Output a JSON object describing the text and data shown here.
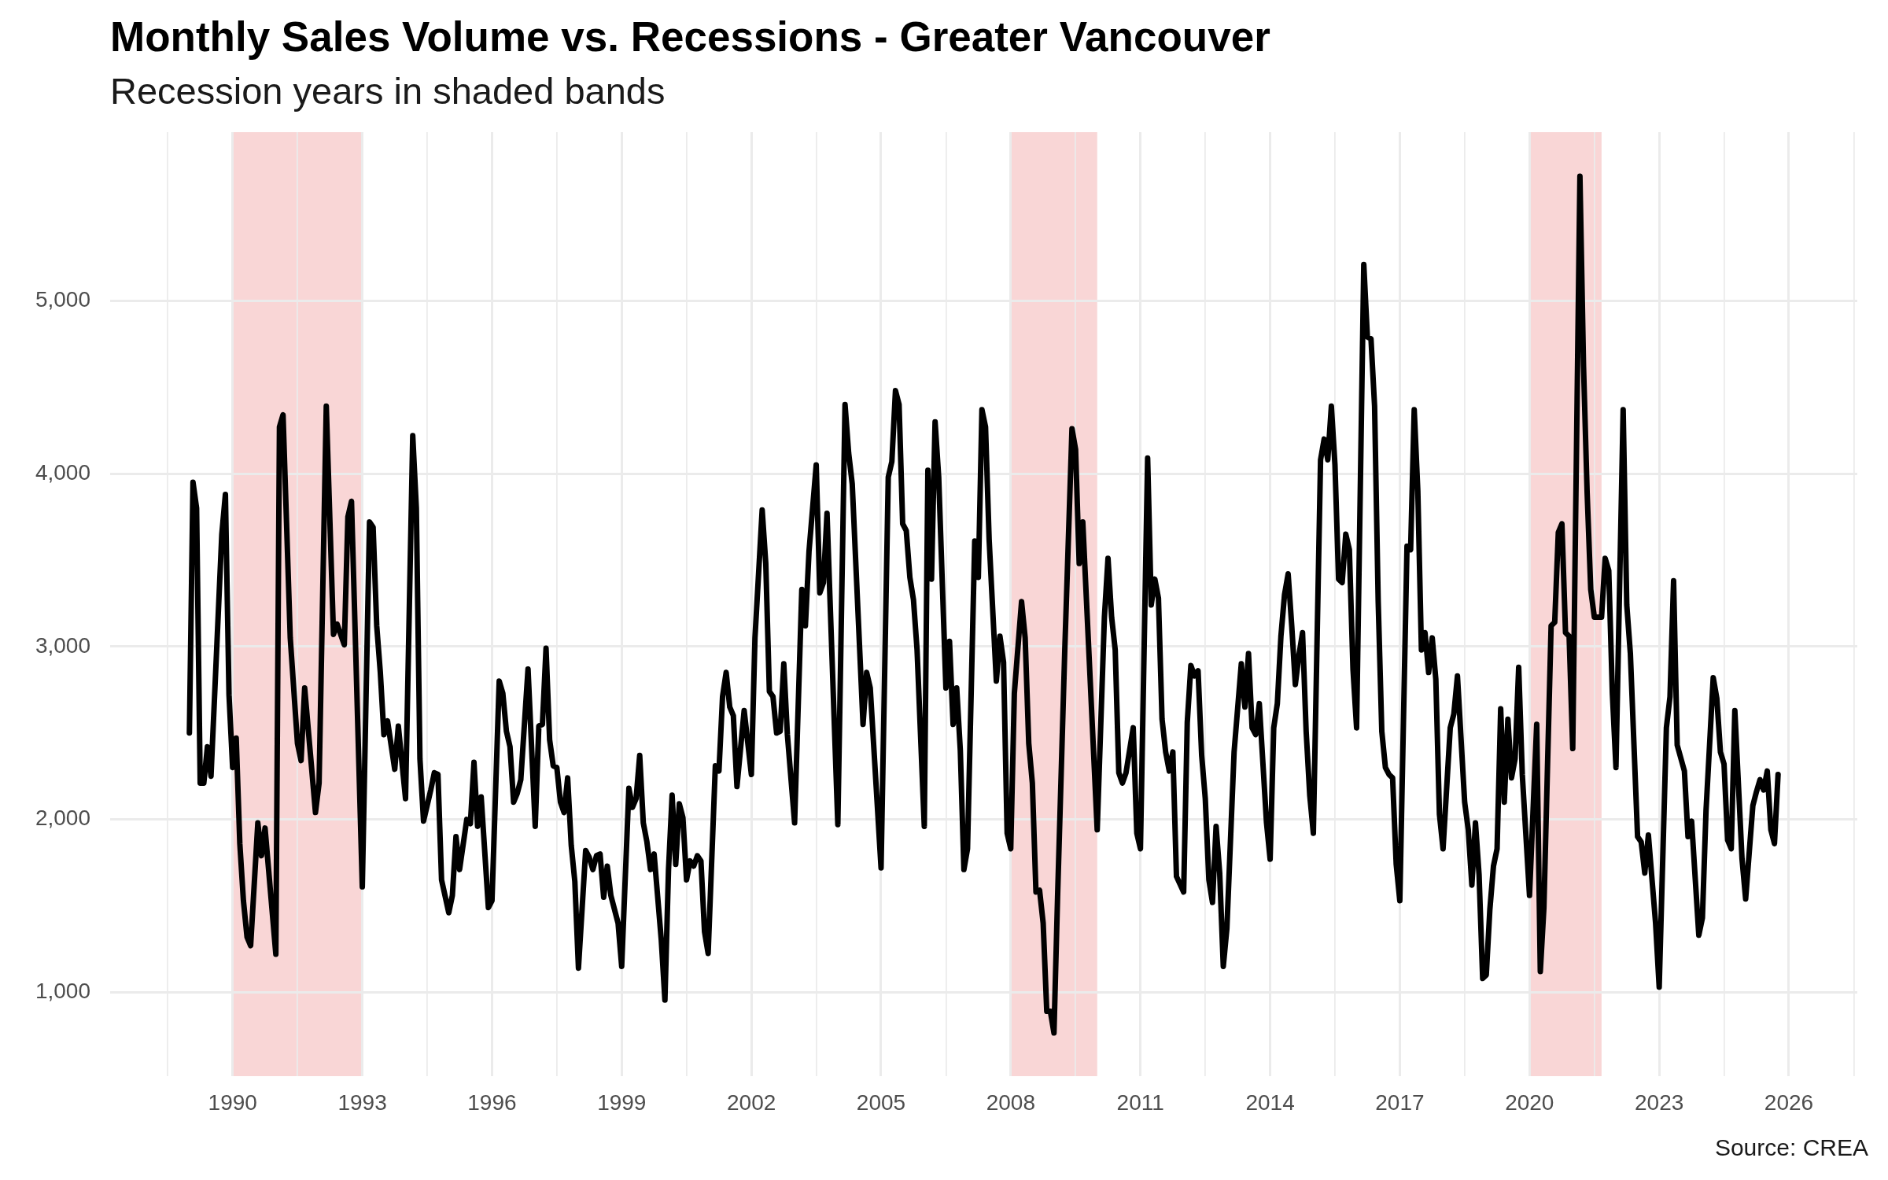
{
  "chart_data": {
    "type": "line",
    "title": "Monthly Sales Volume vs. Recessions - Greater Vancouver",
    "subtitle": "Recession years in shaded bands",
    "annotations": [
      "Source: CREA"
    ],
    "x": [
      "1989-01",
      "1989-02",
      "1989-03",
      "1989-04",
      "1989-05",
      "1989-06",
      "1989-07",
      "1989-10",
      "1989-11",
      "1989-12",
      "1990-01",
      "1990-02",
      "1990-03",
      "1990-04",
      "1990-05",
      "1990-06",
      "1990-08",
      "1990-09",
      "1990-10",
      "1991-01",
      "1991-02",
      "1991-03",
      "1991-05",
      "1991-07",
      "1991-08",
      "1991-09",
      "1991-12",
      "1992-01",
      "1992-03",
      "1992-05",
      "1992-06",
      "1992-08",
      "1992-09",
      "1992-10",
      "1993-01",
      "1993-03",
      "1993-04",
      "1993-05",
      "1993-06",
      "1993-07",
      "1993-08",
      "1993-10",
      "1993-11",
      "1994-01",
      "1994-03",
      "1994-04",
      "1994-05",
      "1994-06",
      "1994-08",
      "1994-09",
      "1994-10",
      "1994-11",
      "1995-01",
      "1995-02",
      "1995-03",
      "1995-04",
      "1995-06",
      "1995-07",
      "1995-08",
      "1995-09",
      "1995-10",
      "1995-12",
      "1996-01",
      "1996-03",
      "1996-04",
      "1996-05",
      "1996-06",
      "1996-07",
      "1996-08",
      "1996-09",
      "1996-11",
      "1997-01",
      "1997-02",
      "1997-03",
      "1997-04",
      "1997-05",
      "1997-06",
      "1997-07",
      "1997-08",
      "1997-09",
      "1997-10",
      "1997-11",
      "1997-12",
      "1998-01",
      "1998-03",
      "1998-04",
      "1998-05",
      "1998-06",
      "1998-07",
      "1998-08",
      "1998-09",
      "1998-10",
      "1998-12",
      "1999-01",
      "1999-03",
      "1999-04",
      "1999-05",
      "1999-06",
      "1999-07",
      "1999-08",
      "1999-09",
      "1999-10",
      "1999-12",
      "2000-01",
      "2000-02",
      "2000-03",
      "2000-04",
      "2000-05",
      "2000-06",
      "2000-07",
      "2000-08",
      "2000-09",
      "2000-10",
      "2000-11",
      "2000-12",
      "2001-01",
      "2001-03",
      "2001-04",
      "2001-05",
      "2001-06",
      "2001-07",
      "2001-08",
      "2001-09",
      "2001-11",
      "2002-01",
      "2002-02",
      "2002-04",
      "2002-05",
      "2002-06",
      "2002-07",
      "2002-08",
      "2002-09",
      "2002-10",
      "2002-11",
      "2003-01",
      "2003-03",
      "2003-04",
      "2003-05",
      "2003-07",
      "2003-08",
      "2003-09",
      "2003-10",
      "2004-01",
      "2004-03",
      "2004-04",
      "2004-05",
      "2004-08",
      "2004-09",
      "2004-10",
      "2005-01",
      "2005-03",
      "2005-04",
      "2005-05",
      "2005-06",
      "2005-07",
      "2005-08",
      "2005-09",
      "2005-10",
      "2005-11",
      "2006-01",
      "2006-02",
      "2006-03",
      "2006-04",
      "2006-05",
      "2006-07",
      "2006-08",
      "2006-09",
      "2006-10",
      "2006-11",
      "2006-12",
      "2007-01",
      "2007-03",
      "2007-04",
      "2007-05",
      "2007-06",
      "2007-07",
      "2007-09",
      "2007-10",
      "2007-11",
      "2007-12",
      "2008-01",
      "2008-02",
      "2008-04",
      "2008-05",
      "2008-06",
      "2008-07",
      "2008-08",
      "2008-09",
      "2008-10",
      "2008-11",
      "2008-12",
      "2009-01",
      "2009-02",
      "2009-04",
      "2009-06",
      "2009-07",
      "2009-08",
      "2009-09",
      "2010-01",
      "2010-03",
      "2010-04",
      "2010-05",
      "2010-06",
      "2010-07",
      "2010-08",
      "2010-09",
      "2010-11",
      "2010-12",
      "2011-01",
      "2011-03",
      "2011-04",
      "2011-05",
      "2011-06",
      "2011-07",
      "2011-08",
      "2011-09",
      "2011-10",
      "2011-11",
      "2012-01",
      "2012-02",
      "2012-03",
      "2012-04",
      "2012-05",
      "2012-06",
      "2012-07",
      "2012-08",
      "2012-09",
      "2012-10",
      "2012-11",
      "2012-12",
      "2013-01",
      "2013-03",
      "2013-05",
      "2013-06",
      "2013-07",
      "2013-08",
      "2013-09",
      "2013-10",
      "2013-12",
      "2014-01",
      "2014-02",
      "2014-03",
      "2014-04",
      "2014-05",
      "2014-06",
      "2014-07",
      "2014-08",
      "2014-09",
      "2014-10",
      "2014-11",
      "2014-12",
      "2015-01",
      "2015-03",
      "2015-04",
      "2015-05",
      "2015-06",
      "2015-07",
      "2015-08",
      "2015-09",
      "2015-10",
      "2015-11",
      "2015-12",
      "2016-01",
      "2016-03",
      "2016-04",
      "2016-05",
      "2016-06",
      "2016-07",
      "2016-08",
      "2016-09",
      "2016-10",
      "2016-11",
      "2016-12",
      "2017-01",
      "2017-03",
      "2017-04",
      "2017-05",
      "2017-06",
      "2017-07",
      "2017-08",
      "2017-09",
      "2017-10",
      "2017-11",
      "2017-12",
      "2018-01",
      "2018-03",
      "2018-04",
      "2018-05",
      "2018-07",
      "2018-08",
      "2018-09",
      "2018-10",
      "2018-11",
      "2018-12",
      "2019-01",
      "2019-02",
      "2019-03",
      "2019-04",
      "2019-05",
      "2019-06",
      "2019-07",
      "2019-08",
      "2019-09",
      "2019-10",
      "2019-11",
      "2020-01",
      "2020-03",
      "2020-04",
      "2020-05",
      "2020-07",
      "2020-08",
      "2020-09",
      "2020-10",
      "2020-11",
      "2020-12",
      "2021-01",
      "2021-03",
      "2021-04",
      "2021-05",
      "2021-06",
      "2021-07",
      "2021-09",
      "2021-10",
      "2021-11",
      "2021-12",
      "2022-01",
      "2022-03",
      "2022-04",
      "2022-05",
      "2022-07",
      "2022-08",
      "2022-09",
      "2022-10",
      "2022-12",
      "2023-01",
      "2023-03",
      "2023-04",
      "2023-05",
      "2023-06",
      "2023-08",
      "2023-09",
      "2023-10",
      "2023-12",
      "2024-01",
      "2024-02",
      "2024-04",
      "2024-05",
      "2024-06",
      "2024-07",
      "2024-08",
      "2024-09",
      "2024-10",
      "2024-12",
      "2025-01",
      "2025-03",
      "2025-04",
      "2025-05",
      "2025-06",
      "2025-07",
      "2025-08",
      "2025-09",
      "2025-10"
    ],
    "values": [
      2500,
      3950,
      3800,
      2210,
      2210,
      2420,
      2250,
      3650,
      3880,
      2720,
      2300,
      2470,
      1860,
      1530,
      1320,
      1270,
      1980,
      1790,
      1950,
      1220,
      4270,
      4340,
      3050,
      2440,
      2340,
      2760,
      2040,
      2210,
      4390,
      3070,
      3130,
      3010,
      3750,
      3840,
      1610,
      3720,
      3690,
      3120,
      2850,
      2490,
      2570,
      2290,
      2540,
      2120,
      4220,
      3800,
      2350,
      1990,
      2170,
      2270,
      2260,
      1650,
      1460,
      1560,
      1900,
      1710,
      2000,
      1975,
      2330,
      1960,
      2130,
      1490,
      1530,
      2800,
      2730,
      2510,
      2420,
      2100,
      2150,
      2230,
      2870,
      1960,
      2540,
      2550,
      2990,
      2460,
      2310,
      2300,
      2100,
      2040,
      2240,
      1850,
      1640,
      1140,
      1820,
      1780,
      1710,
      1790,
      1800,
      1550,
      1730,
      1560,
      1400,
      1150,
      2180,
      2070,
      2120,
      2370,
      1980,
      1870,
      1710,
      1800,
      1300,
      955,
      1710,
      2140,
      1740,
      2090,
      2010,
      1650,
      1760,
      1730,
      1790,
      1760,
      1350,
      1225,
      2310,
      2280,
      2710,
      2850,
      2650,
      2600,
      2190,
      2630,
      2260,
      3050,
      3790,
      3480,
      2740,
      2710,
      2500,
      2510,
      2900,
      2490,
      1980,
      3330,
      3120,
      3550,
      4050,
      3310,
      3370,
      3770,
      1970,
      4400,
      4120,
      3940,
      2550,
      2850,
      2760,
      1720,
      3980,
      4070,
      4480,
      4400,
      3710,
      3670,
      3400,
      3270,
      2980,
      1960,
      4020,
      3390,
      4300,
      3980,
      2760,
      3030,
      2550,
      2760,
      2400,
      1710,
      1830,
      3610,
      3400,
      4370,
      4270,
      3620,
      2800,
      3060,
      2910,
      1920,
      1830,
      2730,
      3260,
      3050,
      2440,
      2210,
      1580,
      1590,
      1400,
      890,
      890,
      765,
      1550,
      2980,
      4260,
      4140,
      3480,
      3720,
      1940,
      3170,
      3510,
      3170,
      2980,
      2270,
      2210,
      2270,
      2530,
      1920,
      1830,
      4090,
      3240,
      3390,
      3280,
      2580,
      2390,
      2280,
      2390,
      1670,
      1580,
      2560,
      2890,
      2830,
      2860,
      2370,
      2120,
      1650,
      1520,
      1960,
      1690,
      1150,
      1370,
      2390,
      2900,
      2650,
      2960,
      2530,
      2490,
      2670,
      1980,
      1770,
      2530,
      2670,
      3060,
      3300,
      3420,
      3120,
      2780,
      2950,
      3080,
      2510,
      2140,
      1920,
      4080,
      4200,
      4080,
      4390,
      4050,
      3390,
      3370,
      3650,
      3560,
      2870,
      2530,
      5210,
      4790,
      4780,
      4390,
      3260,
      2510,
      2300,
      2260,
      2240,
      1740,
      1530,
      3580,
      3560,
      4370,
      3900,
      2980,
      3080,
      2850,
      3050,
      2810,
      2030,
      1830,
      2530,
      2610,
      2830,
      2100,
      1940,
      1620,
      1980,
      1680,
      1080,
      1100,
      1480,
      1730,
      1830,
      2640,
      2100,
      2580,
      2240,
      2350,
      2880,
      2260,
      1560,
      2550,
      1120,
      1490,
      3120,
      3140,
      3660,
      3710,
      3080,
      3060,
      2410,
      5720,
      4620,
      3890,
      3330,
      3170,
      3170,
      3510,
      3440,
      2730,
      2300,
      4370,
      3240,
      2960,
      1900,
      1870,
      1690,
      1910,
      1400,
      1030,
      2530,
      2710,
      3380,
      2430,
      2280,
      1900,
      1990,
      1330,
      1430,
      2050,
      2820,
      2700,
      2390,
      2320,
      1880,
      1830,
      2630,
      1770,
      1540,
      2080,
      2160,
      2230,
      2170,
      2280,
      1940,
      1860,
      2260
    ],
    "color": "#000000",
    "marker": "none",
    "line_style": "solid",
    "grid": true,
    "xlim": [
      "1987-03",
      "2027-08"
    ],
    "xticks": [
      {
        "value": "1988-07",
        "label": null
      },
      "1990",
      {
        "value": "1991-07",
        "label": null
      },
      "1993",
      {
        "value": "1994-07",
        "label": null
      },
      "1996",
      {
        "value": "1997-07",
        "label": null
      },
      "1999",
      {
        "value": "2000-07",
        "label": null
      },
      "2002",
      {
        "value": "2003-07",
        "label": null
      },
      "2005",
      {
        "value": "2006-07",
        "label": null
      },
      "2008",
      {
        "value": "2009-07",
        "label": null
      },
      "2011",
      {
        "value": "2012-07",
        "label": null
      },
      "2014",
      {
        "value": "2015-07",
        "label": null
      },
      "2017",
      {
        "value": "2018-07",
        "label": null
      },
      "2020",
      {
        "value": "2021-07",
        "label": null
      },
      "2023",
      {
        "value": "2024-07",
        "label": null
      },
      "2026",
      {
        "value": "2027-07",
        "label": null
      }
    ],
    "ylim": [
      515,
      5975
    ],
    "yticks": [
      {
        "value": 1000,
        "label": "1,000"
      },
      {
        "value": 2000,
        "label": "2,000"
      },
      {
        "value": 3000,
        "label": "3,000"
      },
      {
        "value": 4000,
        "label": "4,000"
      },
      {
        "value": 5000,
        "label": "5,000"
      }
    ],
    "bands": [
      {
        "axis": "x",
        "from": "1990",
        "to": "1993",
        "color": "#f9d6d6"
      },
      {
        "axis": "x",
        "from": "2008",
        "to": "2010",
        "color": "#f9d6d6"
      },
      {
        "axis": "x",
        "from": "2020",
        "to": "2021-09",
        "color": "#f9d6d6"
      }
    ]
  }
}
